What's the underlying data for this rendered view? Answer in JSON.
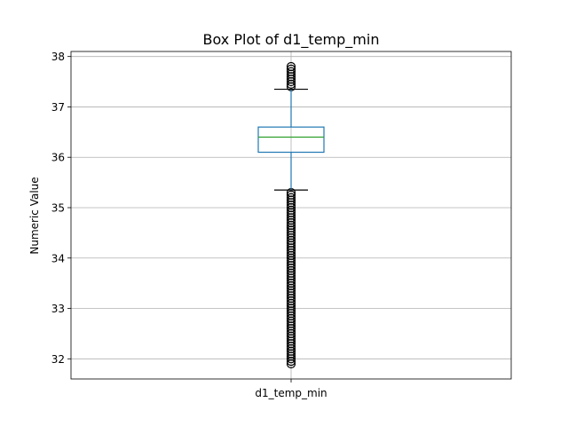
{
  "chart_data": {
    "type": "box",
    "title": "Box Plot of d1_temp_min",
    "xlabel": "",
    "ylabel": "Numeric Value",
    "categories": [
      "d1_temp_min"
    ],
    "ylim": [
      31.6,
      38.1
    ],
    "yticks": [
      32,
      33,
      34,
      35,
      36,
      37,
      38
    ],
    "grid": true,
    "boxes": [
      {
        "name": "d1_temp_min",
        "whisker_low": 35.35,
        "q1": 36.1,
        "median": 36.4,
        "q3": 36.6,
        "whisker_high": 37.35,
        "outliers_low_range": [
          31.9,
          35.3
        ],
        "outliers_high_range": [
          37.4,
          37.8
        ]
      }
    ],
    "colors": {
      "box": "#1f77b4",
      "median": "#2ca02c",
      "outlier": "#000000",
      "grid": "#b0b0b0"
    }
  }
}
